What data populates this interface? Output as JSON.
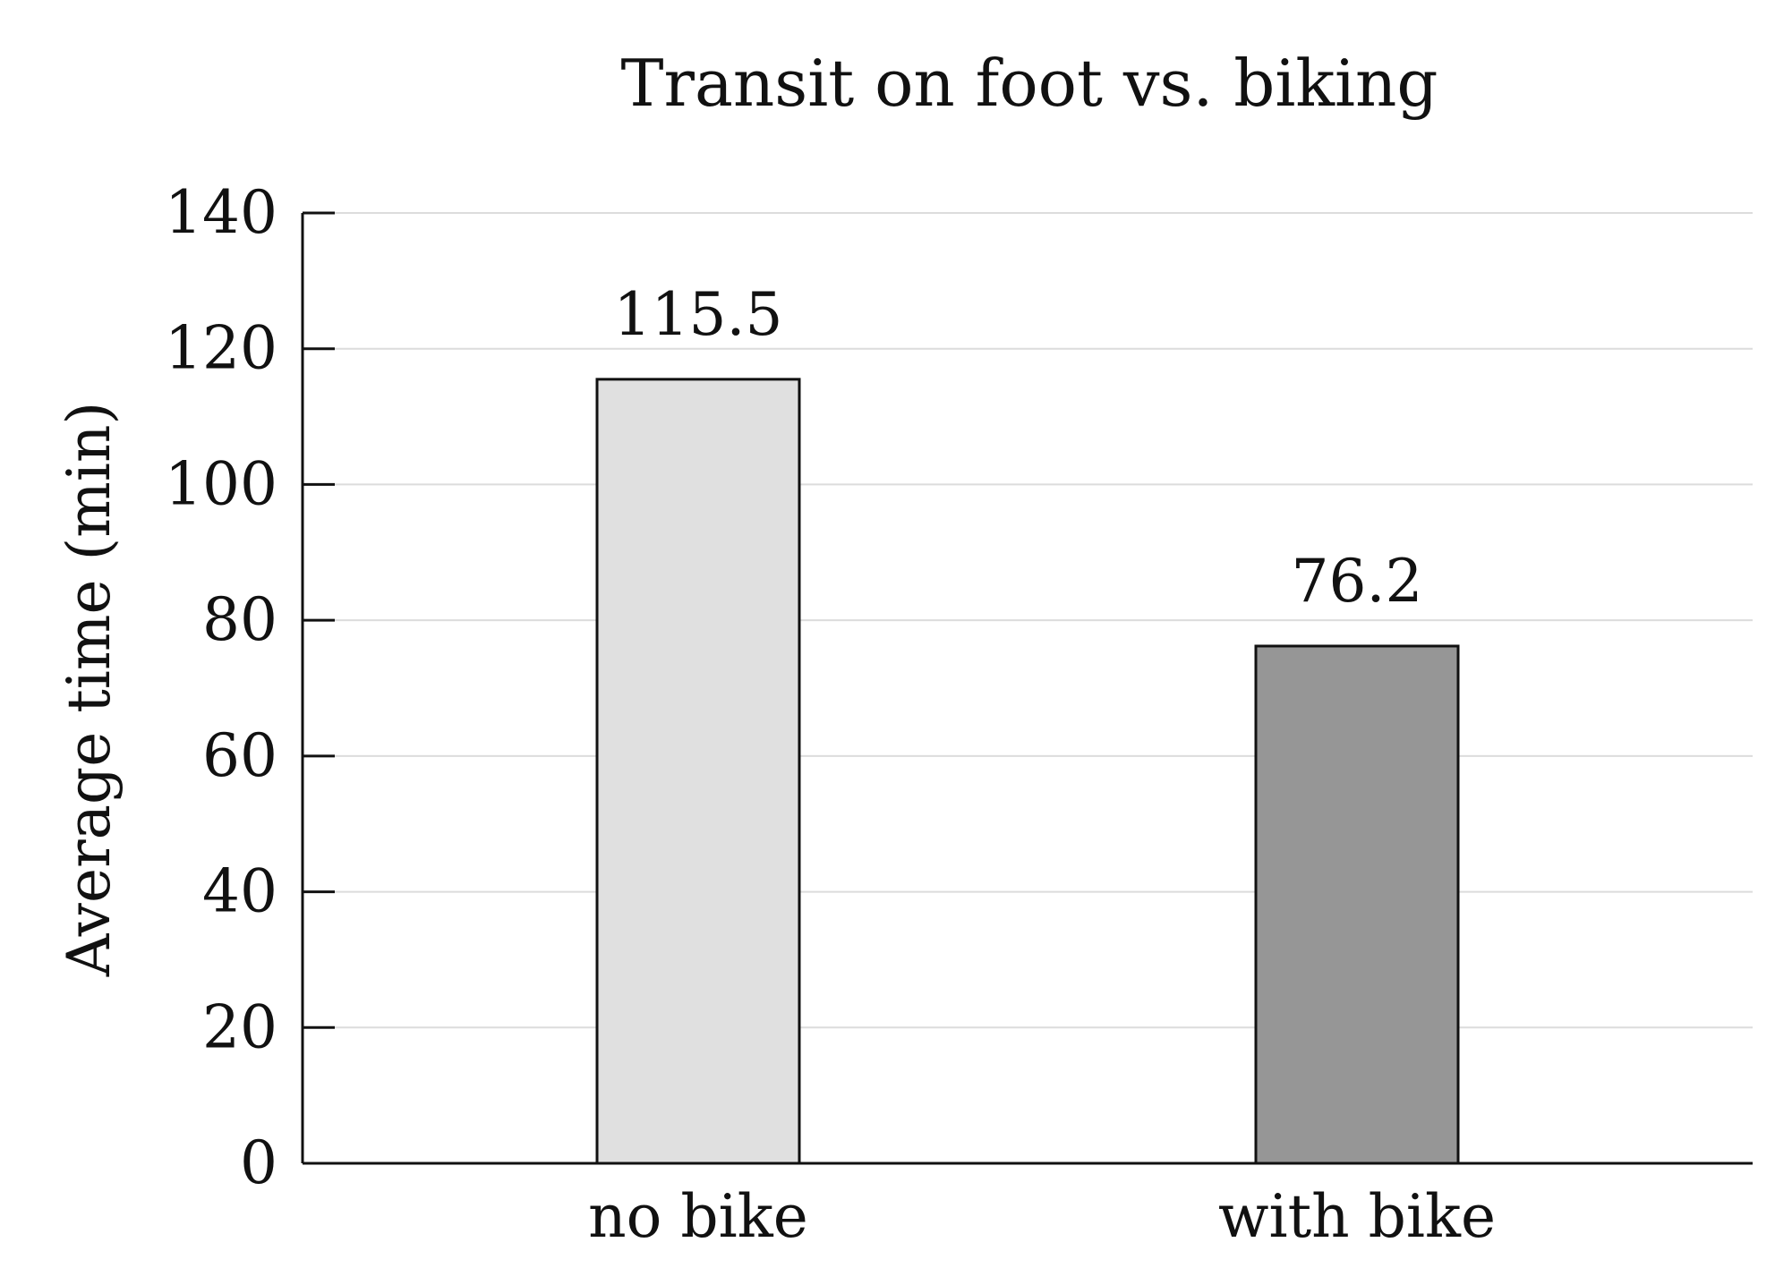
{
  "chart_data": {
    "type": "bar",
    "title": "Transit on foot vs. biking",
    "xlabel": "",
    "ylabel": "Average time (min)",
    "categories": [
      "no bike",
      "with bike"
    ],
    "values": [
      115.5,
      76.2
    ],
    "data_labels": [
      "115.5",
      "76.2"
    ],
    "bar_colors": [
      "#e0e0e0",
      "#969696"
    ],
    "ylim": [
      0,
      140
    ],
    "yticks": [
      0,
      20,
      40,
      60,
      80,
      100,
      120,
      140
    ],
    "grid": true,
    "legend": "none"
  }
}
